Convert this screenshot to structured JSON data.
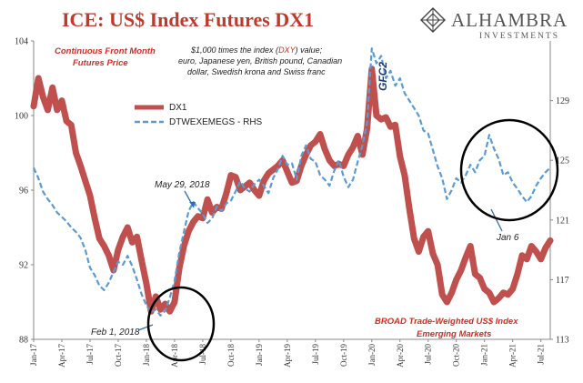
{
  "title": {
    "brand_part": "ICE",
    "rest": ": US$ Index Futures DX1"
  },
  "logo": {
    "name": "ALHAMBRA",
    "sub": "INVESTMENTS"
  },
  "annotations": {
    "continuous_line1": "Continuous  Front Month",
    "continuous_line2": "Futures Price",
    "note_line1_pre": "$1,000 times the index (",
    "note_line1_dxy": "DXY",
    "note_line1_post": ") value;",
    "note_line2": "euro, Japanese yen, British pound, Canadian",
    "note_line3": "dollar, Swedish krona and Swiss franc",
    "gfc2": "GFC2",
    "may29": "May 29, 2018",
    "feb1": "Feb 1, 2018",
    "jan6": "Jan 6",
    "broad_line1": "BROAD Trade-Weighted US$ Index",
    "broad_line2": "Emerging Markets"
  },
  "colors": {
    "dx1": "#c0504d",
    "dtwex": "#5b9bd5",
    "title": "#c0392b",
    "circle": "#000000"
  },
  "chart_data": {
    "type": "line",
    "title": "ICE: US$ Index Futures DX1",
    "x_ticks": [
      "Jan-17",
      "Apr-17",
      "Jul-17",
      "Oct-17",
      "Jan-18",
      "Apr-18",
      "Jul-18",
      "Oct-18",
      "Jan-19",
      "Apr-19",
      "Jul-19",
      "Oct-19",
      "Jan-20",
      "Apr-20",
      "Jul-20",
      "Oct-20",
      "Jan-21",
      "Apr-21",
      "Jul-21"
    ],
    "x_range_months": [
      0,
      55
    ],
    "y_left": {
      "ticks": [
        88,
        92,
        96,
        100,
        104
      ],
      "range": [
        88,
        104
      ]
    },
    "y_right": {
      "ticks": [
        113,
        117,
        121,
        125,
        129
      ],
      "range": [
        113,
        133
      ]
    },
    "legend": {
      "placement": "top-center"
    },
    "series": [
      {
        "name": "DX1",
        "axis": "left",
        "style": "solid-thick",
        "points": [
          [
            0.0,
            100.5
          ],
          [
            0.5,
            102.0
          ],
          [
            1.0,
            101.0
          ],
          [
            1.5,
            100.3
          ],
          [
            2.0,
            101.5
          ],
          [
            2.5,
            100.3
          ],
          [
            3.0,
            100.8
          ],
          [
            3.5,
            99.7
          ],
          [
            4.0,
            99.5
          ],
          [
            4.5,
            98.0
          ],
          [
            5.0,
            97.3
          ],
          [
            5.5,
            96.5
          ],
          [
            6.0,
            95.7
          ],
          [
            6.5,
            94.5
          ],
          [
            7.0,
            93.4
          ],
          [
            7.5,
            93.0
          ],
          [
            8.0,
            92.5
          ],
          [
            8.5,
            91.7
          ],
          [
            9.0,
            92.8
          ],
          [
            9.5,
            93.5
          ],
          [
            10.0,
            94.0
          ],
          [
            10.5,
            93.2
          ],
          [
            11.0,
            93.5
          ],
          [
            11.5,
            92.2
          ],
          [
            12.0,
            91.0
          ],
          [
            12.5,
            89.5
          ],
          [
            13.0,
            90.3
          ],
          [
            13.5,
            89.6
          ],
          [
            14.0,
            89.9
          ],
          [
            14.5,
            89.5
          ],
          [
            15.0,
            90.0
          ],
          [
            15.5,
            91.8
          ],
          [
            16.0,
            93.0
          ],
          [
            16.5,
            93.8
          ],
          [
            17.0,
            94.3
          ],
          [
            17.5,
            94.6
          ],
          [
            18.0,
            94.5
          ],
          [
            18.5,
            95.5
          ],
          [
            19.0,
            94.8
          ],
          [
            19.5,
            95.1
          ],
          [
            20.0,
            95.0
          ],
          [
            20.5,
            95.8
          ],
          [
            21.0,
            96.8
          ],
          [
            21.5,
            96.7
          ],
          [
            22.0,
            96.0
          ],
          [
            22.5,
            96.2
          ],
          [
            23.0,
            96.4
          ],
          [
            23.5,
            96.0
          ],
          [
            24.0,
            95.7
          ],
          [
            24.5,
            96.5
          ],
          [
            25.0,
            96.9
          ],
          [
            25.5,
            97.1
          ],
          [
            26.0,
            97.3
          ],
          [
            26.5,
            97.6
          ],
          [
            27.0,
            97.0
          ],
          [
            27.5,
            96.4
          ],
          [
            28.0,
            96.5
          ],
          [
            28.5,
            97.3
          ],
          [
            29.0,
            97.9
          ],
          [
            29.5,
            98.4
          ],
          [
            30.0,
            98.6
          ],
          [
            30.5,
            99.0
          ],
          [
            31.0,
            98.2
          ],
          [
            31.5,
            97.6
          ],
          [
            32.0,
            97.3
          ],
          [
            32.5,
            97.4
          ],
          [
            33.0,
            97.3
          ],
          [
            33.5,
            97.9
          ],
          [
            34.0,
            98.3
          ],
          [
            34.5,
            98.9
          ],
          [
            35.0,
            97.9
          ],
          [
            35.5,
            99.3
          ],
          [
            36.0,
            102.5
          ],
          [
            36.5,
            100.0
          ],
          [
            37.0,
            99.8
          ],
          [
            37.5,
            99.9
          ],
          [
            38.0,
            99.4
          ],
          [
            38.5,
            99.5
          ],
          [
            39.0,
            97.8
          ],
          [
            39.5,
            96.8
          ],
          [
            40.0,
            95.0
          ],
          [
            40.5,
            93.4
          ],
          [
            41.0,
            92.7
          ],
          [
            41.5,
            93.5
          ],
          [
            42.0,
            93.8
          ],
          [
            42.5,
            92.6
          ],
          [
            43.0,
            92.0
          ],
          [
            43.5,
            90.4
          ],
          [
            44.0,
            90.0
          ],
          [
            44.5,
            90.5
          ],
          [
            45.0,
            91.2
          ],
          [
            45.5,
            91.7
          ],
          [
            46.0,
            92.4
          ],
          [
            46.5,
            93.0
          ],
          [
            47.0,
            91.5
          ],
          [
            47.5,
            91.3
          ],
          [
            48.0,
            90.7
          ],
          [
            48.5,
            90.5
          ],
          [
            49.0,
            90.0
          ],
          [
            49.5,
            90.2
          ],
          [
            50.0,
            90.5
          ],
          [
            50.5,
            90.4
          ],
          [
            51.0,
            90.7
          ],
          [
            51.5,
            91.5
          ],
          [
            52.0,
            92.5
          ],
          [
            52.5,
            92.3
          ],
          [
            53.0,
            93.0
          ],
          [
            53.5,
            92.7
          ],
          [
            54.0,
            92.3
          ],
          [
            54.5,
            92.9
          ],
          [
            55.0,
            93.3
          ]
        ]
      },
      {
        "name": "DTWEXEMEGS - RHS",
        "axis": "right",
        "style": "dashed",
        "points": [
          [
            0.0,
            124.5
          ],
          [
            0.5,
            123.8
          ],
          [
            1.0,
            122.9
          ],
          [
            1.5,
            122.4
          ],
          [
            2.0,
            122.0
          ],
          [
            2.5,
            121.5
          ],
          [
            3.0,
            121.2
          ],
          [
            3.5,
            120.9
          ],
          [
            4.0,
            120.5
          ],
          [
            4.5,
            120.2
          ],
          [
            5.0,
            119.8
          ],
          [
            5.5,
            119.0
          ],
          [
            6.0,
            117.8
          ],
          [
            6.5,
            117.3
          ],
          [
            7.0,
            116.6
          ],
          [
            7.5,
            116.3
          ],
          [
            8.0,
            116.8
          ],
          [
            8.5,
            117.5
          ],
          [
            9.0,
            118.2
          ],
          [
            9.5,
            118.0
          ],
          [
            10.0,
            118.6
          ],
          [
            10.5,
            117.9
          ],
          [
            11.0,
            117.0
          ],
          [
            11.5,
            116.0
          ],
          [
            12.0,
            115.3
          ],
          [
            12.5,
            114.8
          ],
          [
            13.0,
            115.0
          ],
          [
            13.5,
            114.6
          ],
          [
            14.0,
            114.9
          ],
          [
            14.5,
            115.8
          ],
          [
            15.0,
            116.9
          ],
          [
            15.5,
            118.8
          ],
          [
            16.0,
            120.2
          ],
          [
            16.5,
            121.6
          ],
          [
            17.0,
            122.2
          ],
          [
            17.5,
            121.8
          ],
          [
            18.0,
            121.4
          ],
          [
            18.5,
            120.8
          ],
          [
            19.0,
            121.1
          ],
          [
            19.5,
            121.9
          ],
          [
            20.0,
            121.6
          ],
          [
            20.5,
            122.1
          ],
          [
            21.0,
            122.3
          ],
          [
            21.5,
            122.9
          ],
          [
            22.0,
            123.6
          ],
          [
            22.5,
            123.1
          ],
          [
            23.0,
            122.9
          ],
          [
            23.5,
            123.4
          ],
          [
            24.0,
            123.7
          ],
          [
            24.5,
            123.3
          ],
          [
            25.0,
            122.8
          ],
          [
            25.5,
            123.8
          ],
          [
            26.0,
            124.4
          ],
          [
            26.5,
            125.3
          ],
          [
            27.0,
            124.7
          ],
          [
            27.5,
            124.8
          ],
          [
            28.0,
            123.7
          ],
          [
            28.5,
            125.3
          ],
          [
            29.0,
            126.0
          ],
          [
            29.5,
            125.1
          ],
          [
            30.0,
            124.9
          ],
          [
            30.5,
            124.0
          ],
          [
            31.0,
            123.7
          ],
          [
            31.5,
            123.3
          ],
          [
            32.0,
            124.3
          ],
          [
            32.5,
            125.0
          ],
          [
            33.0,
            123.9
          ],
          [
            33.5,
            123.2
          ],
          [
            34.0,
            123.7
          ],
          [
            34.5,
            124.9
          ],
          [
            35.0,
            126.0
          ],
          [
            35.5,
            127.5
          ],
          [
            36.0,
            132.5
          ],
          [
            36.5,
            131.5
          ],
          [
            37.0,
            132.0
          ],
          [
            37.5,
            130.5
          ],
          [
            38.0,
            131.0
          ],
          [
            38.5,
            130.0
          ],
          [
            39.0,
            130.5
          ],
          [
            39.5,
            129.5
          ],
          [
            40.0,
            129.0
          ],
          [
            40.5,
            128.5
          ],
          [
            41.0,
            128.0
          ],
          [
            41.5,
            127.0
          ],
          [
            42.0,
            126.8
          ],
          [
            42.5,
            125.7
          ],
          [
            43.0,
            124.6
          ],
          [
            43.5,
            123.8
          ],
          [
            44.0,
            122.4
          ],
          [
            44.5,
            123.0
          ],
          [
            45.0,
            123.8
          ],
          [
            45.5,
            123.5
          ],
          [
            46.0,
            124.0
          ],
          [
            46.5,
            124.7
          ],
          [
            47.0,
            124.2
          ],
          [
            47.5,
            125.0
          ],
          [
            48.0,
            125.3
          ],
          [
            48.5,
            126.7
          ],
          [
            49.0,
            125.8
          ],
          [
            49.5,
            125.1
          ],
          [
            50.0,
            124.0
          ],
          [
            50.5,
            124.2
          ],
          [
            51.0,
            123.5
          ],
          [
            51.5,
            123.1
          ],
          [
            52.0,
            122.6
          ],
          [
            52.5,
            122.2
          ],
          [
            53.0,
            122.6
          ],
          [
            53.5,
            123.3
          ],
          [
            54.0,
            123.8
          ],
          [
            54.5,
            124.2
          ],
          [
            55.0,
            124.5
          ]
        ]
      }
    ]
  }
}
